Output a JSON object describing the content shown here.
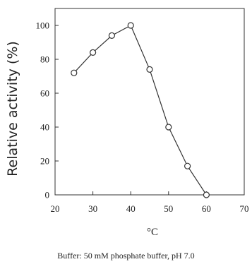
{
  "chart_data": {
    "type": "line",
    "xlabel": "°C",
    "ylabel": "Relative activity (%)",
    "xlim": [
      20,
      70
    ],
    "ylim": [
      0,
      110
    ],
    "xticks": [
      20,
      30,
      40,
      50,
      60,
      70
    ],
    "yticks": [
      0,
      20,
      40,
      60,
      80,
      100
    ],
    "grid": false,
    "series": [
      {
        "x": [
          25,
          30,
          35,
          40,
          45,
          50,
          55,
          60
        ],
        "y": [
          72,
          84,
          94,
          100,
          74,
          40,
          17,
          0
        ]
      }
    ],
    "caption": "Buffer: 50 mM phosphate buffer, pH 7.0"
  }
}
